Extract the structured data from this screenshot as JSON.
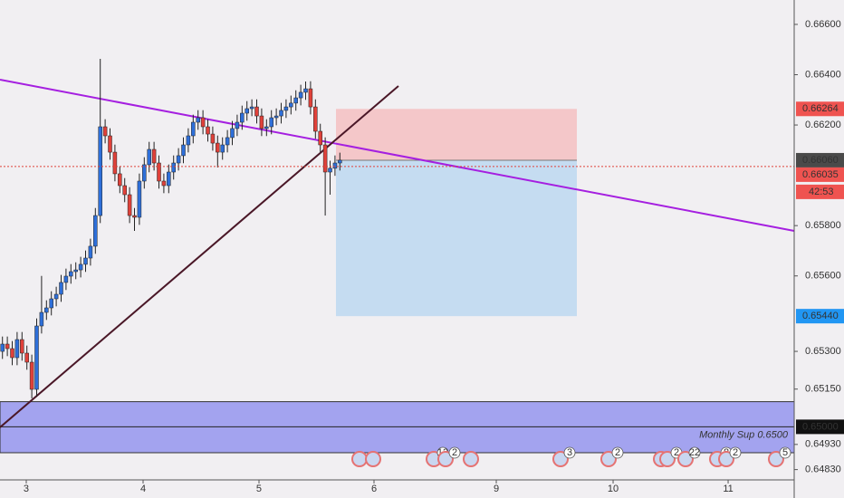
{
  "chart_data": {
    "type": "candlestick",
    "up_color": "#2e6fd9",
    "down_color": "#e0413a",
    "xlim": [
      -0.5,
      161.9
    ],
    "xticks": [
      {
        "value": 4.87,
        "label": "3"
      },
      {
        "value": 28.76,
        "label": "4"
      },
      {
        "value": 52.46,
        "label": "5"
      },
      {
        "value": 75.98,
        "label": "6"
      },
      {
        "value": 100.98,
        "label": "9"
      },
      {
        "value": 124.87,
        "label": "10"
      },
      {
        "value": 148.39,
        "label": "11"
      }
    ],
    "ylim": [
      0.64789,
      0.66697
    ],
    "yticks": [
      {
        "value": 0.666,
        "label": "0.66600"
      },
      {
        "value": 0.664,
        "label": "0.66400"
      },
      {
        "value": 0.662,
        "label": "0.66200"
      },
      {
        "value": 0.658,
        "label": "0.65800"
      },
      {
        "value": 0.656,
        "label": "0.65600"
      },
      {
        "value": 0.653,
        "label": "0.65300"
      },
      {
        "value": 0.6515,
        "label": "0.65150"
      },
      {
        "value": 0.6493,
        "label": "0.64930"
      },
      {
        "value": 0.6483,
        "label": "0.64830"
      }
    ],
    "open": [
      0.653,
      0.65329,
      0.65311,
      0.65275,
      0.65347,
      0.65293,
      0.65257,
      0.65149,
      0.65401,
      0.65455,
      0.65473,
      0.65509,
      0.65527,
      0.65574,
      0.65599,
      0.65617,
      0.65624,
      0.65646,
      0.65671,
      0.65718,
      0.6584,
      0.66193,
      0.66157,
      0.66092,
      0.66006,
      0.65959,
      0.65923,
      0.6584,
      0.65833,
      0.65977,
      0.66042,
      0.66103,
      0.66049,
      0.65977,
      0.65959,
      0.66013,
      0.66049,
      0.66078,
      0.66121,
      0.66157,
      0.66211,
      0.66229,
      0.66193,
      0.66164,
      0.66128,
      0.66092,
      0.66121,
      0.6615,
      0.66186,
      0.66211,
      0.66247,
      0.66265,
      0.66272,
      0.66236,
      0.66186,
      0.66193,
      0.66229,
      0.66236,
      0.66258,
      0.66272,
      0.66287,
      0.66308,
      0.6633,
      0.66344,
      0.66272,
      0.66175,
      0.66121,
      0.66013,
      0.66028,
      0.66049
    ],
    "high": [
      0.65359,
      0.65359,
      0.65341,
      0.65377,
      0.65377,
      0.65323,
      0.65287,
      0.65431,
      0.656,
      0.65503,
      0.65539,
      0.65557,
      0.65604,
      0.65629,
      0.65647,
      0.65654,
      0.65676,
      0.65701,
      0.65748,
      0.6587,
      0.66463,
      0.66223,
      0.66187,
      0.66122,
      0.66036,
      0.65989,
      0.65953,
      0.6587,
      0.66007,
      0.66072,
      0.66133,
      0.66133,
      0.66079,
      0.66007,
      0.66043,
      0.66079,
      0.66108,
      0.66151,
      0.66187,
      0.66241,
      0.66259,
      0.66259,
      0.66223,
      0.66194,
      0.66158,
      0.66151,
      0.6618,
      0.66216,
      0.66241,
      0.66277,
      0.66295,
      0.66302,
      0.66302,
      0.66266,
      0.66223,
      0.66259,
      0.66266,
      0.66288,
      0.66302,
      0.66317,
      0.66338,
      0.6636,
      0.66373,
      0.66374,
      0.66302,
      0.66205,
      0.66151,
      0.66058,
      0.66079,
      0.6609
    ],
    "low": [
      0.6527,
      0.65281,
      0.65245,
      0.65245,
      0.65263,
      0.65227,
      0.65113,
      0.65119,
      0.65371,
      0.65425,
      0.65443,
      0.65479,
      0.65497,
      0.65544,
      0.65569,
      0.65587,
      0.65594,
      0.65616,
      0.65641,
      0.65688,
      0.6581,
      0.66127,
      0.66062,
      0.65976,
      0.65929,
      0.65893,
      0.6581,
      0.65779,
      0.65803,
      0.65947,
      0.66012,
      0.66019,
      0.65947,
      0.65929,
      0.65929,
      0.65983,
      0.66019,
      0.66048,
      0.66091,
      0.66127,
      0.66181,
      0.66163,
      0.66134,
      0.66098,
      0.66031,
      0.66062,
      0.66091,
      0.6612,
      0.66156,
      0.66181,
      0.66217,
      0.66235,
      0.66206,
      0.66156,
      0.66156,
      0.66163,
      0.66199,
      0.66206,
      0.66228,
      0.66242,
      0.66257,
      0.66278,
      0.663,
      0.66242,
      0.66145,
      0.66091,
      0.6584,
      0.65923,
      0.65998,
      0.66019
    ],
    "close": [
      0.65329,
      0.65311,
      0.65275,
      0.65347,
      0.65293,
      0.65257,
      0.65149,
      0.65401,
      0.65455,
      0.65473,
      0.65509,
      0.65527,
      0.65574,
      0.65599,
      0.65617,
      0.65624,
      0.65646,
      0.65671,
      0.65718,
      0.6584,
      0.66193,
      0.66157,
      0.66092,
      0.66006,
      0.65959,
      0.65923,
      0.6584,
      0.65833,
      0.65977,
      0.66042,
      0.66103,
      0.66049,
      0.65977,
      0.65959,
      0.66013,
      0.66049,
      0.66078,
      0.66121,
      0.66157,
      0.66211,
      0.66229,
      0.66193,
      0.66164,
      0.66128,
      0.66092,
      0.66121,
      0.6615,
      0.66186,
      0.66211,
      0.66247,
      0.66265,
      0.66272,
      0.66236,
      0.66186,
      0.66193,
      0.66229,
      0.66236,
      0.66258,
      0.66272,
      0.66287,
      0.66308,
      0.6633,
      0.66344,
      0.66272,
      0.66175,
      0.66121,
      0.66013,
      0.66028,
      0.66049,
      0.6606
    ],
    "position": {
      "stop": 0.66264,
      "entry": 0.6606,
      "target": 0.6544,
      "stop_color": "#f4c7c9",
      "target_color": "#c5dcf1"
    },
    "support_zone": {
      "top": 0.651,
      "bottom": 0.64897,
      "level": 0.65,
      "label": "Monthly Sup 0.6500",
      "color": "#a3a3ef"
    },
    "last_price": 0.66035,
    "price_markers": [
      {
        "value": 0.66264,
        "label": "0.66264",
        "color": "#ef5350"
      },
      {
        "value": 0.6606,
        "label": "0.66060",
        "color": "#4a4a4a"
      },
      {
        "value": 0.66035,
        "label": "0.66035",
        "color": "#ef5350"
      },
      {
        "value": 0.6544,
        "label": "0.65440",
        "color": "#2196f3"
      },
      {
        "value": 0.65,
        "label": "0.65000",
        "color": "#111111"
      }
    ],
    "countdown": "42:53",
    "event_counts": [
      "12",
      "2",
      "3",
      "2",
      "2",
      "22",
      "8",
      "2",
      "5"
    ]
  }
}
